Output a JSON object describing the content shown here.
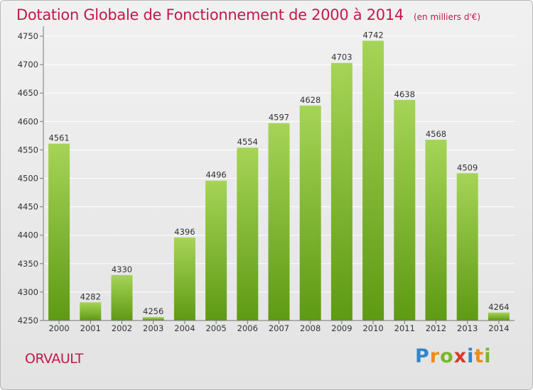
{
  "title": "Dotation Globale de Fonctionnement de 2000 à 2014",
  "unit_note": "(en milliers d'€)",
  "commune": "ORVAULT",
  "logo": {
    "text": "Proxiti",
    "letters": [
      {
        "ch": "P",
        "color": "#2f86c8"
      },
      {
        "ch": "r",
        "color": "#f08a1c"
      },
      {
        "ch": "o",
        "color": "#7cb52c"
      },
      {
        "ch": "x",
        "color": "#d63a2b"
      },
      {
        "ch": "i",
        "color": "#2f86c8"
      },
      {
        "ch": "t",
        "color": "#f08a1c"
      },
      {
        "ch": "i",
        "color": "#7cb52c"
      }
    ]
  },
  "colors": {
    "title": "#c4184a",
    "bar_top": "#a6d456",
    "bar_bottom": "#5e9a14",
    "grid": "#ffffff",
    "axis_text": "#333333"
  },
  "chart_data": {
    "type": "bar",
    "categories": [
      "2000",
      "2001",
      "2002",
      "2003",
      "2004",
      "2005",
      "2006",
      "2007",
      "2008",
      "2009",
      "2010",
      "2011",
      "2012",
      "2013",
      "2014"
    ],
    "values": [
      4561,
      4282,
      4330,
      4256,
      4396,
      4496,
      4554,
      4597,
      4628,
      4703,
      4742,
      4638,
      4568,
      4509,
      4264
    ],
    "yticks": [
      4250,
      4300,
      4350,
      4400,
      4450,
      4500,
      4550,
      4600,
      4650,
      4700,
      4750
    ],
    "ylim": [
      4250,
      4760
    ],
    "grid": true,
    "data_labels": true
  }
}
